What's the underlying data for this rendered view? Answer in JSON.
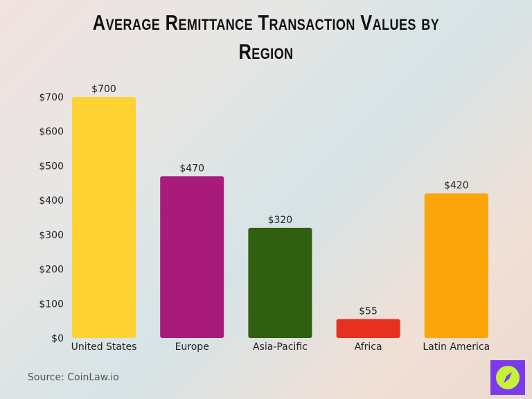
{
  "chart_data": {
    "type": "bar",
    "title": "Average Remittance Transaction Values by Region",
    "categories": [
      "United States",
      "Europe",
      "Asia-Pacific",
      "Africa",
      "Latin America"
    ],
    "values": [
      700,
      470,
      320,
      55,
      420
    ],
    "data_labels": [
      "$700",
      "$470",
      "$320",
      "$55",
      "$420"
    ],
    "colors": [
      "#fdd231",
      "#a81b7a",
      "#2f5f0f",
      "#e8301f",
      "#fca50a"
    ],
    "yticks": [
      0,
      100,
      200,
      300,
      400,
      500,
      600,
      700
    ],
    "ytick_labels": [
      "$0",
      "$100",
      "$200",
      "$300",
      "$400",
      "$500",
      "$600",
      "$700"
    ],
    "ylim": [
      0,
      700
    ],
    "xlabel": "",
    "ylabel": "",
    "grid": false,
    "legend": "none"
  },
  "source": "Source: CoinLaw.io",
  "logo": {
    "icon": "compass-icon",
    "bg": "#7c3aed",
    "fg": "#c6f03a"
  }
}
